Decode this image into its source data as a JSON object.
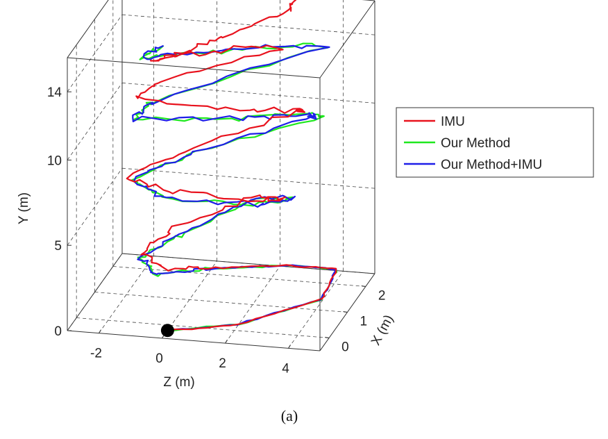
{
  "chart_data": {
    "type": "line",
    "projection": "3d",
    "caption": "(a)",
    "xlabel": "X (m)",
    "ylabel": "Y (m)",
    "zlabel": "Z (m)",
    "xlim": [
      -0.5,
      2.5
    ],
    "ylim": [
      0,
      16
    ],
    "zlim": [
      -3,
      5
    ],
    "x_ticks": [
      0,
      1,
      2
    ],
    "y_ticks": [
      0,
      5,
      10,
      14
    ],
    "z_ticks": [
      -2,
      0,
      2,
      4
    ],
    "grid": true,
    "legend_position": "right",
    "start_marker": {
      "x": -0.2,
      "y": 0,
      "z": 0,
      "color": "#000000"
    },
    "series": [
      {
        "name": "IMU",
        "color": "#e8121d",
        "points": [
          [
            -0.2,
            0.0,
            0.0
          ],
          [
            0.2,
            0.05,
            2.0
          ],
          [
            1.3,
            0.15,
            4.0
          ],
          [
            1.65,
            1.45,
            4.3
          ],
          [
            1.3,
            2.0,
            2.9
          ],
          [
            0.2,
            3.2,
            1.0
          ],
          [
            -0.25,
            3.6,
            0.0
          ],
          [
            0.1,
            4.0,
            -1.0
          ],
          [
            0.9,
            4.3,
            -0.4
          ],
          [
            1.6,
            5.4,
            1.7
          ],
          [
            1.0,
            6.4,
            3.0
          ],
          [
            0.2,
            7.4,
            2.5
          ],
          [
            -0.3,
            8.3,
            0.2
          ],
          [
            -0.1,
            8.7,
            -1.3
          ],
          [
            0.7,
            9.2,
            0.0
          ],
          [
            1.8,
            10.3,
            3.0
          ],
          [
            1.2,
            11.3,
            3.5
          ],
          [
            0.3,
            12.4,
            2.0
          ],
          [
            -0.3,
            13.6,
            -1.0
          ],
          [
            0.3,
            13.9,
            -0.4
          ],
          [
            1.3,
            14.8,
            2.8
          ],
          [
            0.5,
            15.5,
            1.0
          ],
          [
            -0.3,
            15.9,
            -0.5
          ],
          [
            0.0,
            16.2,
            0.5
          ],
          [
            0.4,
            16.6,
            1.5
          ],
          [
            0.9,
            17.3,
            3.0
          ],
          [
            1.3,
            17.6,
            3.2
          ]
        ]
      },
      {
        "name": "Our Method",
        "color": "#1ee81e",
        "points": [
          [
            -0.2,
            0.0,
            0.0
          ],
          [
            0.2,
            0.05,
            2.0
          ],
          [
            1.3,
            0.15,
            4.0
          ],
          [
            1.65,
            1.45,
            4.3
          ],
          [
            1.3,
            2.0,
            3.0
          ],
          [
            0.3,
            3.0,
            1.0
          ],
          [
            -0.3,
            3.4,
            -0.3
          ],
          [
            0.0,
            3.8,
            -1.0
          ],
          [
            0.8,
            4.3,
            0.0
          ],
          [
            1.7,
            5.2,
            1.8
          ],
          [
            1.2,
            6.1,
            3.2
          ],
          [
            0.3,
            7.0,
            2.5
          ],
          [
            -0.4,
            8.0,
            0.0
          ],
          [
            -0.1,
            8.5,
            -1.2
          ],
          [
            0.8,
            9.0,
            0.3
          ],
          [
            2.2,
            9.5,
            3.6
          ],
          [
            1.5,
            10.6,
            3.4
          ],
          [
            0.4,
            11.8,
            2.0
          ],
          [
            -0.4,
            12.5,
            -1.0
          ],
          [
            0.0,
            13.0,
            -0.6
          ],
          [
            1.6,
            14.6,
            4.0
          ],
          [
            0.8,
            15.4,
            2.0
          ],
          [
            0.1,
            15.8,
            0.3
          ],
          [
            -0.3,
            16.0,
            -0.8
          ],
          [
            0.1,
            16.2,
            -0.3
          ]
        ]
      },
      {
        "name": "Our Method+IMU",
        "color": "#1e1ee8",
        "points": [
          [
            -0.2,
            0.0,
            0.0
          ],
          [
            0.2,
            0.05,
            2.0
          ],
          [
            1.3,
            0.15,
            4.0
          ],
          [
            1.65,
            1.45,
            4.3
          ],
          [
            1.3,
            2.0,
            2.9
          ],
          [
            0.3,
            3.0,
            1.0
          ],
          [
            -0.3,
            3.4,
            -0.4
          ],
          [
            0.0,
            3.8,
            -1.0
          ],
          [
            0.8,
            4.3,
            0.0
          ],
          [
            1.7,
            5.2,
            1.8
          ],
          [
            1.2,
            6.1,
            3.2
          ],
          [
            0.3,
            7.0,
            2.5
          ],
          [
            -0.4,
            8.0,
            0.0
          ],
          [
            -0.1,
            8.5,
            -1.2
          ],
          [
            0.8,
            9.0,
            0.3
          ],
          [
            2.1,
            9.6,
            3.4
          ],
          [
            1.5,
            10.6,
            3.4
          ],
          [
            0.4,
            11.8,
            2.0
          ],
          [
            -0.4,
            12.5,
            -1.0
          ],
          [
            0.0,
            13.0,
            -0.6
          ],
          [
            1.6,
            14.6,
            4.0
          ],
          [
            0.8,
            15.4,
            2.0
          ],
          [
            0.1,
            15.8,
            0.3
          ],
          [
            -0.3,
            16.0,
            -0.8
          ],
          [
            0.1,
            16.2,
            -0.3
          ]
        ]
      }
    ]
  }
}
